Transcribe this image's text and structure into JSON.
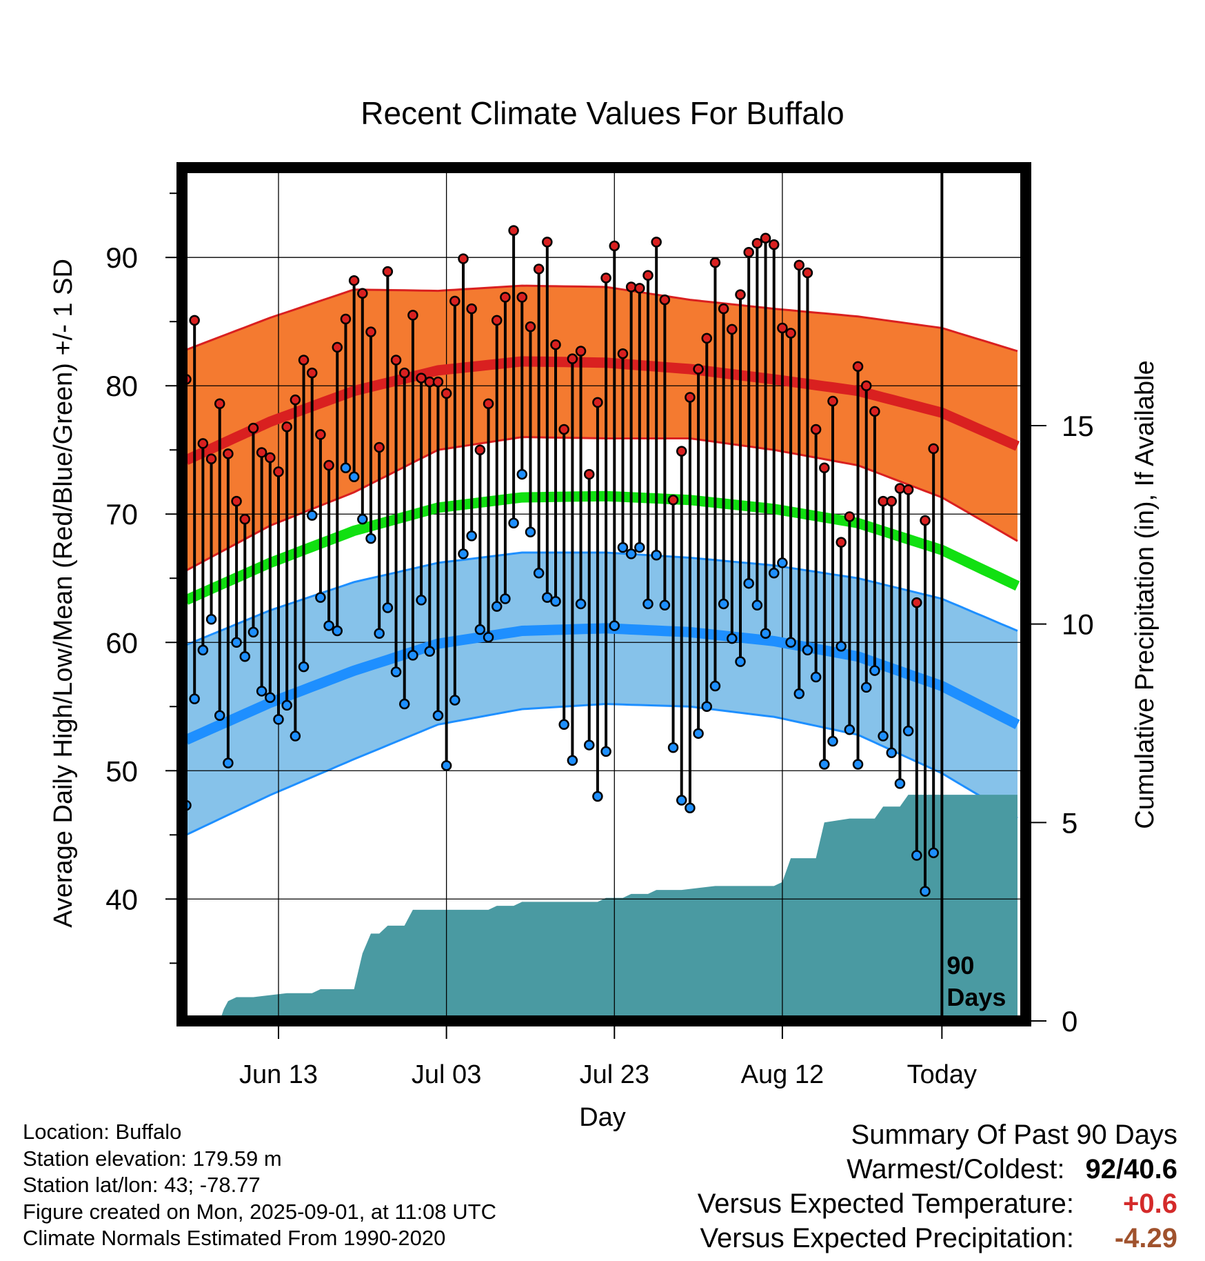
{
  "chart_data": {
    "type": "line",
    "title": "Recent Climate Values For Buffalo",
    "xlabel": "Day",
    "ylabel": "Average Daily High/Low/Mean (Red/Blue/Green) +/- 1 SD",
    "y2label": "Cumulative Precipitation (in), If Available",
    "ylim": [
      30.5,
      97
    ],
    "y2lim": [
      0,
      21.5
    ],
    "yticks": [
      "40",
      "50",
      "60",
      "70",
      "80",
      "90"
    ],
    "y2ticks": [
      "0",
      "5",
      "10",
      "15"
    ],
    "xticks": [
      {
        "day": 11,
        "label": "Jun 13"
      },
      {
        "day": 31,
        "label": "Jul 03"
      },
      {
        "day": 51,
        "label": "Jul 23"
      },
      {
        "day": 71,
        "label": "Aug 12"
      },
      {
        "day": 90,
        "label": "Today"
      }
    ],
    "xlim": [
      0,
      99
    ],
    "today_day": 90,
    "today_label": "90 Days",
    "grid": true,
    "colors": {
      "high": "#d92020",
      "high_band": "#f47a30",
      "low": "#1e8fff",
      "low_band": "#86c2ea",
      "mean": "#11e011",
      "precip": "#4a9aa2"
    },
    "normals": {
      "day": [
        0,
        10,
        20,
        30,
        40,
        50,
        60,
        70,
        80,
        90,
        99
      ],
      "high_mean": [
        74.2,
        77.2,
        79.6,
        81.2,
        81.9,
        81.8,
        81.3,
        80.5,
        79.6,
        77.9,
        75.3
      ],
      "high_sd": [
        8.6,
        8.1,
        7.9,
        6.2,
        5.9,
        5.9,
        5.4,
        5.5,
        5.8,
        6.6,
        7.4
      ],
      "low_mean": [
        52.4,
        55.3,
        57.8,
        59.9,
        60.9,
        61.1,
        60.8,
        60.1,
        58.9,
        56.6,
        53.6
      ],
      "low_sd": [
        7.4,
        7.2,
        6.9,
        6.3,
        6.1,
        5.9,
        5.8,
        5.9,
        6.1,
        6.8,
        7.3
      ],
      "mean_line": [
        63.3,
        66.2,
        68.7,
        70.5,
        71.3,
        71.4,
        71.1,
        70.4,
        69.3,
        67.2,
        64.4
      ]
    },
    "series": [
      {
        "name": "High",
        "values": [
          80.5,
          85.1,
          75.5,
          74.3,
          78.6,
          74.7,
          71.0,
          69.6,
          76.7,
          74.8,
          74.4,
          73.3,
          76.8,
          78.9,
          82.0,
          81.0,
          76.2,
          73.8,
          83.0,
          85.2,
          88.2,
          87.2,
          84.2,
          75.2,
          88.9,
          82.0,
          81.0,
          85.5,
          80.6,
          80.3,
          80.3,
          79.4,
          86.6,
          89.9,
          86.0,
          75.0,
          78.6,
          85.1,
          86.9,
          92.1,
          86.9,
          84.6,
          89.1,
          91.2,
          83.2,
          76.6,
          82.1,
          82.7,
          73.1,
          78.7,
          88.4,
          90.9,
          82.5,
          87.7,
          87.6,
          88.6,
          91.2,
          86.7,
          71.1,
          74.9,
          79.1,
          81.3,
          83.7,
          89.6,
          86.0,
          84.4,
          87.1,
          90.4,
          91.1,
          91.5,
          91.0,
          84.5,
          84.1,
          89.4,
          88.8,
          76.6,
          73.6,
          78.8,
          67.8,
          69.8,
          81.5,
          80.0,
          78.0,
          71.0,
          71.0,
          72.0,
          71.9,
          63.1,
          69.5,
          75.1
        ]
      },
      {
        "name": "Low",
        "values": [
          47.3,
          55.6,
          59.4,
          61.8,
          54.3,
          50.6,
          60.0,
          58.9,
          60.8,
          56.2,
          55.7,
          54.0,
          55.1,
          52.7,
          58.1,
          69.9,
          63.5,
          61.3,
          60.9,
          73.6,
          72.9,
          69.6,
          68.1,
          60.7,
          62.7,
          57.7,
          55.2,
          59.0,
          63.3,
          59.3,
          54.3,
          50.4,
          55.5,
          66.9,
          68.3,
          61.0,
          60.4,
          62.8,
          63.4,
          69.3,
          73.1,
          68.6,
          65.4,
          63.5,
          63.2,
          53.6,
          50.8,
          63.0,
          52.0,
          48.0,
          51.5,
          61.3,
          67.4,
          66.9,
          67.4,
          63.0,
          66.8,
          62.9,
          51.8,
          47.7,
          47.1,
          52.9,
          55.0,
          56.6,
          63.0,
          60.3,
          58.5,
          64.6,
          62.9,
          60.7,
          65.4,
          66.2,
          60.0,
          56.0,
          59.4,
          57.3,
          50.5,
          52.3,
          59.7,
          53.2,
          50.5,
          56.5,
          57.8,
          52.7,
          51.4,
          49.0,
          53.1,
          43.4,
          40.6,
          43.6
        ]
      }
    ],
    "precip": {
      "day": [
        0,
        4,
        4.5,
        5,
        6,
        7,
        8,
        12,
        15,
        16,
        20,
        21,
        22,
        23,
        24,
        26,
        27,
        36,
        37,
        39,
        40,
        49,
        50,
        52,
        53,
        55,
        56,
        58,
        59,
        63,
        64,
        70,
        71,
        72,
        73,
        75,
        76,
        79,
        80,
        82,
        83,
        85,
        86,
        90,
        99
      ],
      "values": [
        0,
        0,
        0.3,
        0.5,
        0.6,
        0.6,
        0.6,
        0.7,
        0.7,
        0.8,
        0.8,
        1.7,
        2.2,
        2.2,
        2.4,
        2.4,
        2.8,
        2.8,
        2.9,
        2.9,
        3.0,
        3.0,
        3.1,
        3.1,
        3.2,
        3.2,
        3.3,
        3.3,
        3.3,
        3.4,
        3.4,
        3.4,
        3.5,
        4.1,
        4.1,
        4.1,
        5.0,
        5.1,
        5.1,
        5.1,
        5.4,
        5.4,
        5.7,
        5.7,
        5.7
      ]
    }
  },
  "info": {
    "location": "Location: Buffalo",
    "elevation": "Station elevation: 179.59 m",
    "latlon": "Station lat/lon: 43; -78.77",
    "created": "Figure created on Mon, 2025-09-01, at 11:08 UTC",
    "normals": "Climate Normals Estimated From 1990-2020"
  },
  "summary": {
    "title": "Summary Of Past 90 Days",
    "warm_cold_label": "Warmest/Coldest:",
    "warm_cold_value": "92/40.6",
    "temp_label": "Versus Expected Temperature:",
    "temp_value": "+0.6",
    "temp_color": "#d42a2a",
    "precip_label": "Versus Expected Precipitation:",
    "precip_value": "-4.29",
    "precip_color": "#a0522d"
  }
}
